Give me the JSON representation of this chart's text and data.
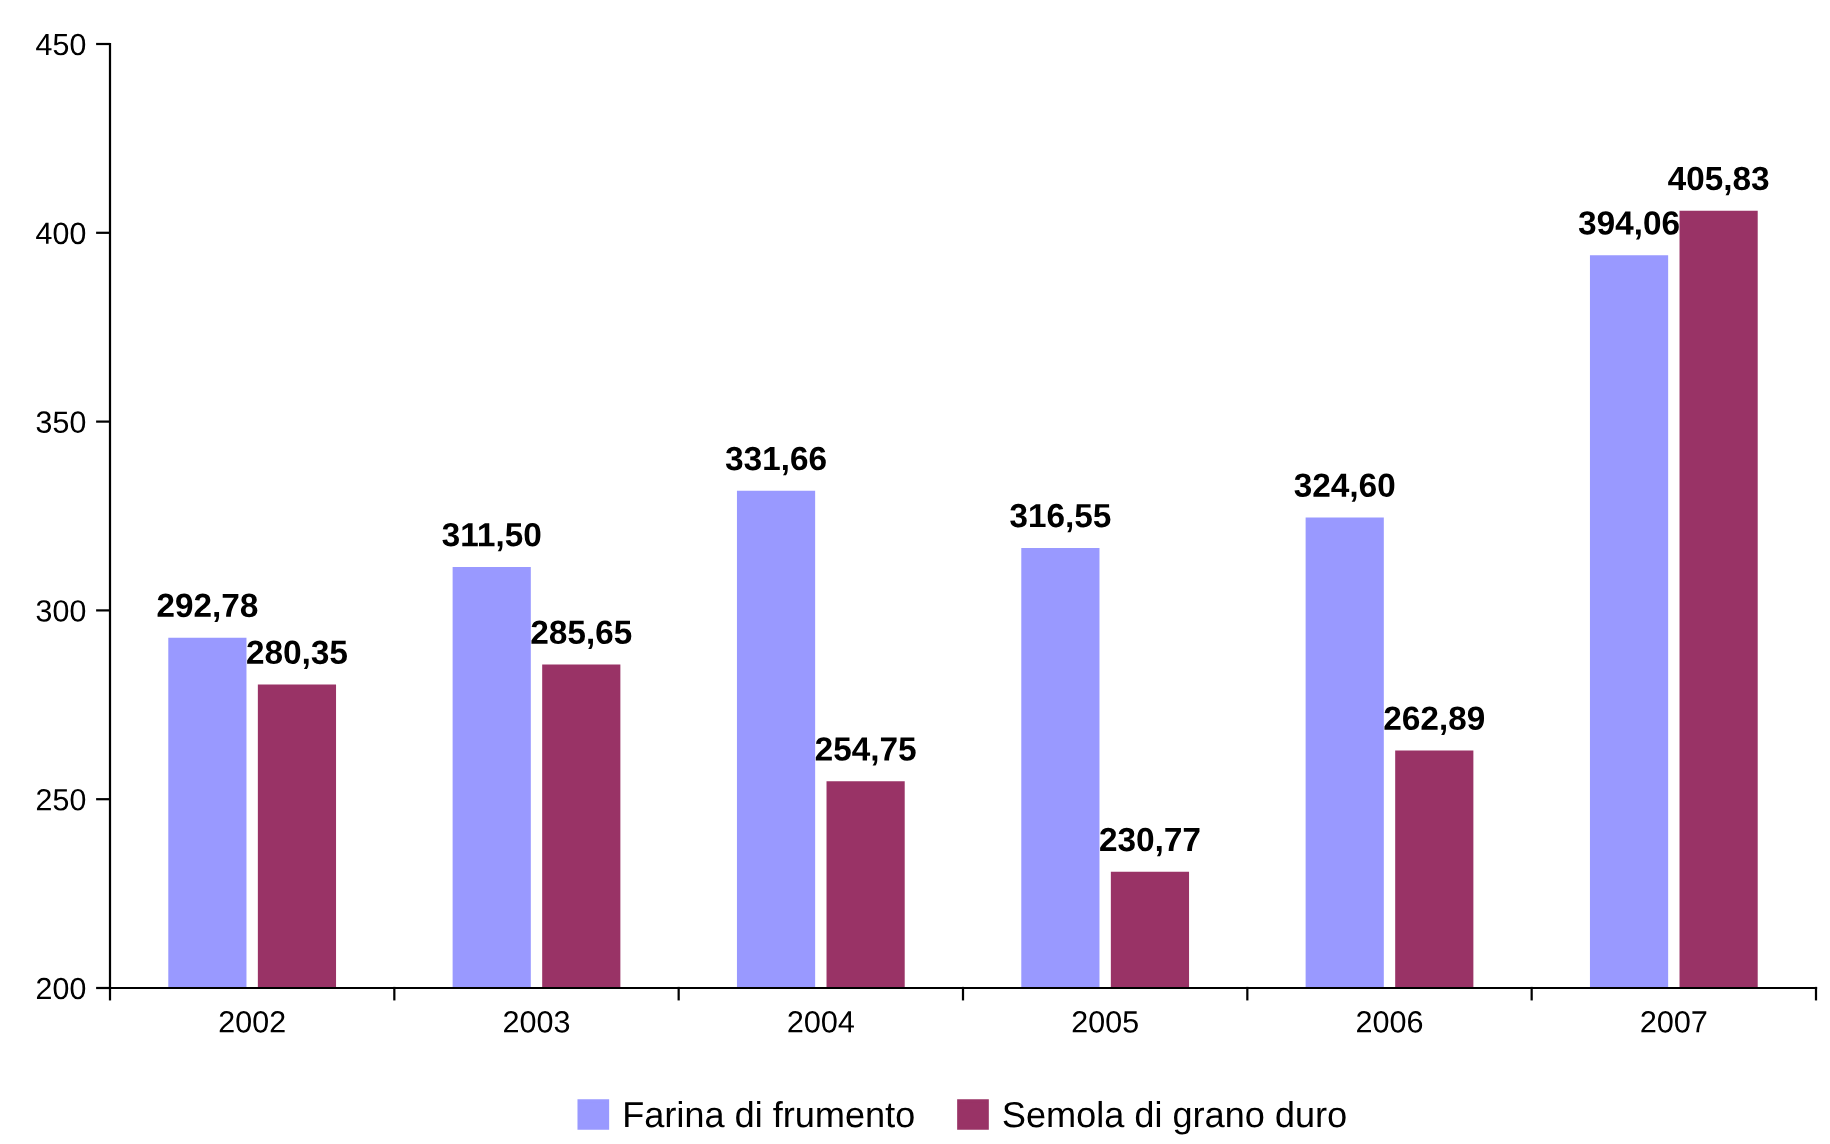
{
  "chart_data": {
    "type": "bar",
    "categories": [
      "2002",
      "2003",
      "2004",
      "2005",
      "2006",
      "2007"
    ],
    "series": [
      {
        "name": "Farina di frumento",
        "color": "#9999ff",
        "values": [
          292.78,
          311.5,
          331.66,
          316.55,
          324.6,
          394.06
        ],
        "value_labels": [
          "292,78",
          "311,50",
          "331,66",
          "316,55",
          "324,60",
          "394,06"
        ]
      },
      {
        "name": "Semola di grano duro",
        "color": "#993366",
        "values": [
          280.35,
          285.65,
          254.75,
          230.77,
          262.89,
          405.83
        ],
        "value_labels": [
          "280,35",
          "285,65",
          "254,75",
          "230,77",
          "262,89",
          "405,83"
        ]
      }
    ],
    "ylim": [
      200,
      450
    ],
    "yticks": [
      200,
      250,
      300,
      350,
      400,
      450
    ],
    "grid": false,
    "legend": "bottom"
  }
}
